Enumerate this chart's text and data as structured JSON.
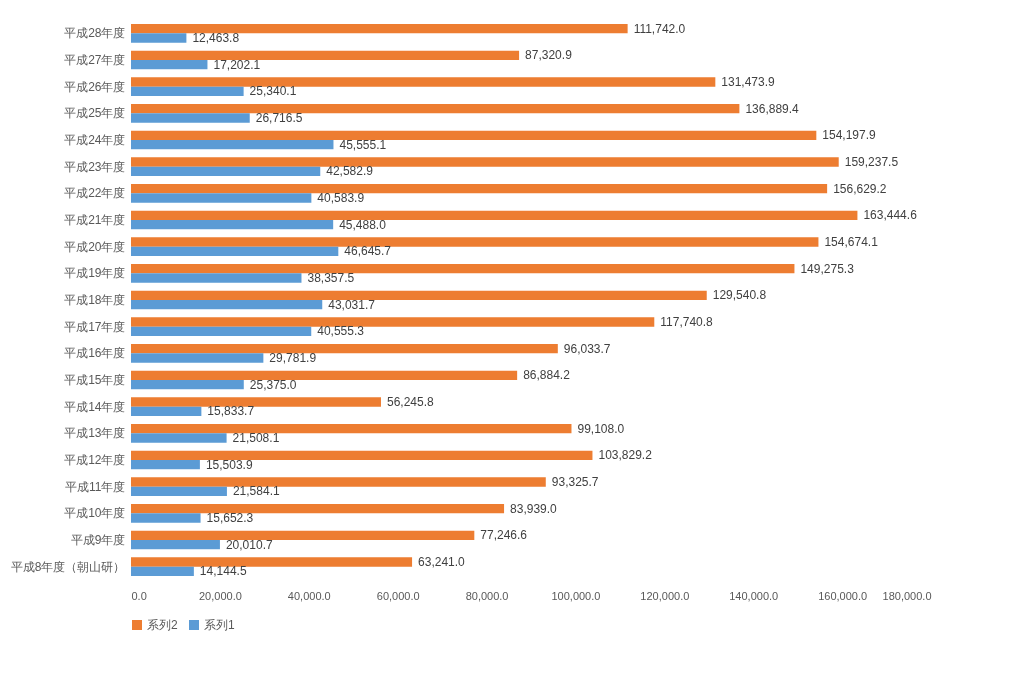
{
  "chart_data": {
    "type": "bar",
    "orientation": "horizontal",
    "categories": [
      "平成28年度",
      "平成27年度",
      "平成26年度",
      "平成25年度",
      "平成24年度",
      "平成23年度",
      "平成22年度",
      "平成21年度",
      "平成20年度",
      "平成19年度",
      "平成18年度",
      "平成17年度",
      "平成16年度",
      "平成15年度",
      "平成14年度",
      "平成13年度",
      "平成12年度",
      "平成11年度",
      "平成10年度",
      "平成9年度",
      "平成8年度（朝山研）"
    ],
    "series": [
      {
        "name": "系列2",
        "color": "#ed7d31",
        "values": [
          111742.0,
          87320.9,
          131473.9,
          136889.4,
          154197.9,
          159237.5,
          156629.2,
          163444.6,
          154674.1,
          149275.3,
          129540.8,
          117740.8,
          96033.7,
          86884.2,
          56245.8,
          99108.0,
          103829.2,
          93325.7,
          83939.0,
          77246.6,
          63241.0
        ],
        "value_labels": [
          "111,742.0",
          "87,320.9",
          "131,473.9",
          "136,889.4",
          "154,197.9",
          "159,237.5",
          "156,629.2",
          "163,444.6",
          "154,674.1",
          "149,275.3",
          "129,540.8",
          "117,740.8",
          "96,033.7",
          "86,884.2",
          "56,245.8",
          "99,108.0",
          "103,829.2",
          "93,325.7",
          "83,939.0",
          "77,246.6",
          "63,241.0"
        ]
      },
      {
        "name": "系列1",
        "color": "#5b9bd5",
        "values": [
          12463.8,
          17202.1,
          25340.1,
          26716.5,
          45555.1,
          42582.9,
          40583.9,
          45488.0,
          46645.7,
          38357.5,
          43031.7,
          40555.3,
          29781.9,
          25375.0,
          15833.7,
          21508.1,
          15503.9,
          21584.1,
          15652.3,
          20010.7,
          14144.5
        ],
        "value_labels": [
          "12,463.8",
          "17,202.1",
          "25,340.1",
          "26,716.5",
          "45,555.1",
          "42,582.9",
          "40,583.9",
          "45,488.0",
          "46,645.7",
          "38,357.5",
          "43,031.7",
          "40,555.3",
          "29,781.9",
          "25,375.0",
          "15,833.7",
          "21,508.1",
          "15,503.9",
          "21,584.1",
          "15,652.3",
          "20,010.7",
          "14,144.5"
        ]
      }
    ],
    "xlim": [
      0,
      180000
    ],
    "xticks": [
      {
        "value": 0,
        "label": "0.0"
      },
      {
        "value": 20000,
        "label": "20,000.0"
      },
      {
        "value": 40000,
        "label": "40,000.0"
      },
      {
        "value": 60000,
        "label": "60,000.0"
      },
      {
        "value": 80000,
        "label": "80,000.0"
      },
      {
        "value": 100000,
        "label": "100,000.0"
      },
      {
        "value": 120000,
        "label": "120,000.0"
      },
      {
        "value": 140000,
        "label": "140,000.0"
      },
      {
        "value": 160000,
        "label": "160,000.0"
      },
      {
        "value": 180000,
        "label": "180,000.0"
      }
    ],
    "legend": "bottom"
  }
}
